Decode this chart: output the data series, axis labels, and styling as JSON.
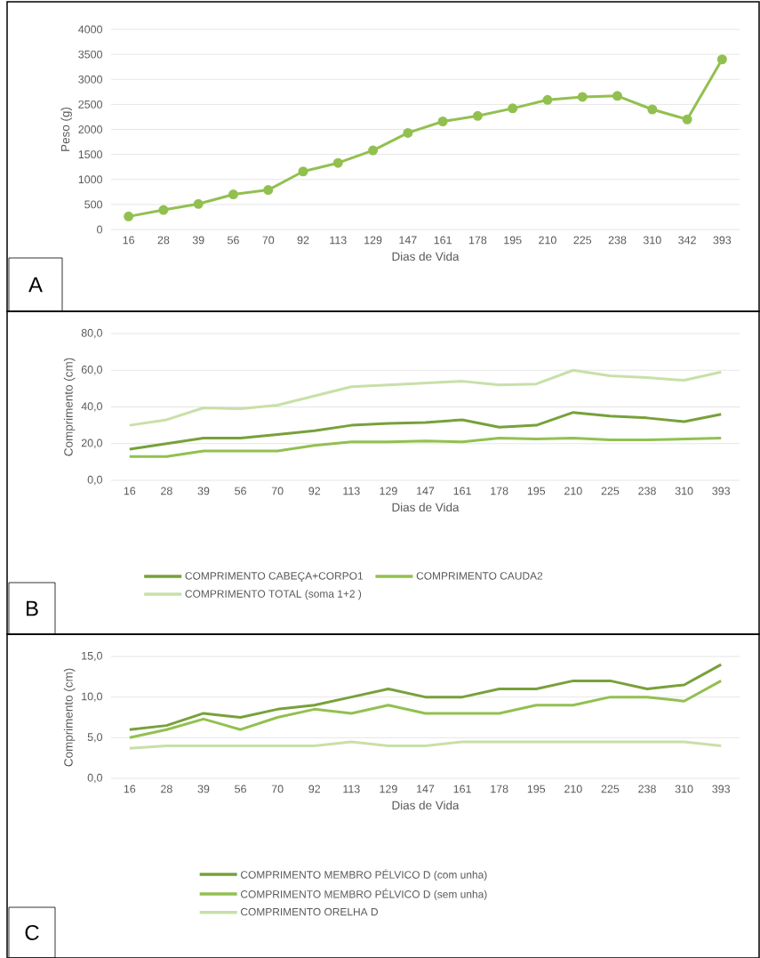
{
  "chart_data": [
    {
      "type": "line",
      "categories": [
        "16",
        "28",
        "39",
        "56",
        "70",
        "92",
        "113",
        "129",
        "147",
        "161",
        "178",
        "195",
        "210",
        "225",
        "238",
        "310",
        "342",
        "393"
      ],
      "series": [
        {
          "color": "#92c050",
          "values": [
            260,
            390,
            510,
            700,
            790,
            1160,
            1330,
            1580,
            1930,
            2160,
            2270,
            2420,
            2590,
            2650,
            2670,
            2400,
            2200,
            3400
          ]
        }
      ],
      "ylabel": "Peso (g)",
      "xlabel": "Dias de Vida",
      "ylim": [
        0,
        4000
      ],
      "yticks": [
        0,
        500,
        1000,
        1500,
        2000,
        2500,
        3000,
        3500,
        4000
      ],
      "grid": "y",
      "marker": "circle",
      "line_style": "solid",
      "legend": false,
      "annotations": [
        "A"
      ]
    },
    {
      "type": "line",
      "categories": [
        "16",
        "28",
        "39",
        "56",
        "70",
        "92",
        "113",
        "129",
        "147",
        "161",
        "178",
        "195",
        "210",
        "225",
        "238",
        "310",
        "393"
      ],
      "series": [
        {
          "name": "COMPRIMENTO CABEÇA+CORPO1",
          "color": "#77a13a",
          "values": [
            17,
            20,
            23,
            23,
            25,
            27,
            30,
            31,
            31.5,
            33,
            29,
            30,
            37,
            35,
            34,
            32,
            36
          ]
        },
        {
          "name": "COMPRIMENTO CAUDA2",
          "color": "#92c050",
          "values": [
            13,
            13,
            16,
            16,
            16,
            19,
            21,
            21,
            21.5,
            21,
            23,
            22.5,
            23,
            22,
            22,
            22.5,
            23
          ]
        },
        {
          "name": "COMPRIMENTO TOTAL (soma 1+2 )",
          "color": "#c8e0a8",
          "values": [
            30,
            33,
            39.5,
            39,
            41,
            46,
            51,
            52,
            53,
            54,
            52,
            52.5,
            60,
            57,
            56,
            54.5,
            59
          ]
        }
      ],
      "ylabel": "Comprimento (cm)",
      "xlabel": "Dias de Vida",
      "ylim": [
        0,
        80
      ],
      "yticks": [
        {
          "value": 0,
          "label": "0,0"
        },
        {
          "value": 20,
          "label": "20,0"
        },
        {
          "value": 40,
          "label": "40,0"
        },
        {
          "value": 60,
          "label": "60,0"
        },
        {
          "value": 80,
          "label": "80,0"
        }
      ],
      "grid": "y",
      "marker": "none",
      "line_style": "solid",
      "legend": "bottom",
      "annotations": [
        "B"
      ]
    },
    {
      "type": "line",
      "categories": [
        "16",
        "28",
        "39",
        "56",
        "70",
        "92",
        "113",
        "129",
        "147",
        "161",
        "178",
        "195",
        "210",
        "225",
        "238",
        "310",
        "393"
      ],
      "series": [
        {
          "name": "COMPRIMENTO MEMBRO PÉLVICO D (com unha)",
          "color": "#77a13a",
          "values": [
            6,
            6.5,
            8,
            7.5,
            8.5,
            9,
            10,
            11,
            10,
            10,
            11,
            11,
            12,
            12,
            11,
            11.5,
            14
          ]
        },
        {
          "name": "COMPRIMENTO MEMBRO PÉLVICO D (sem unha)",
          "color": "#92c050",
          "values": [
            5,
            6,
            7.3,
            6,
            7.5,
            8.5,
            8,
            9,
            8,
            8,
            8,
            9,
            9,
            10,
            10,
            9.5,
            12
          ]
        },
        {
          "name": "COMPRIMENTO ORELHA D",
          "color": "#c8e0a8",
          "values": [
            3.7,
            4,
            4,
            4,
            4,
            4,
            4.5,
            4,
            4,
            4.5,
            4.5,
            4.5,
            4.5,
            4.5,
            4.5,
            4.5,
            4
          ]
        }
      ],
      "ylabel": "Comprimento (cm)",
      "xlabel": "Dias de Vida",
      "ylim": [
        0,
        15
      ],
      "yticks": [
        {
          "value": 0,
          "label": "0,0"
        },
        {
          "value": 5,
          "label": "5,0"
        },
        {
          "value": 10,
          "label": "10,0"
        },
        {
          "value": 15,
          "label": "15,0"
        }
      ],
      "grid": "y",
      "marker": "none",
      "line_style": "solid",
      "legend": "bottom",
      "annotations": [
        "C"
      ]
    }
  ]
}
